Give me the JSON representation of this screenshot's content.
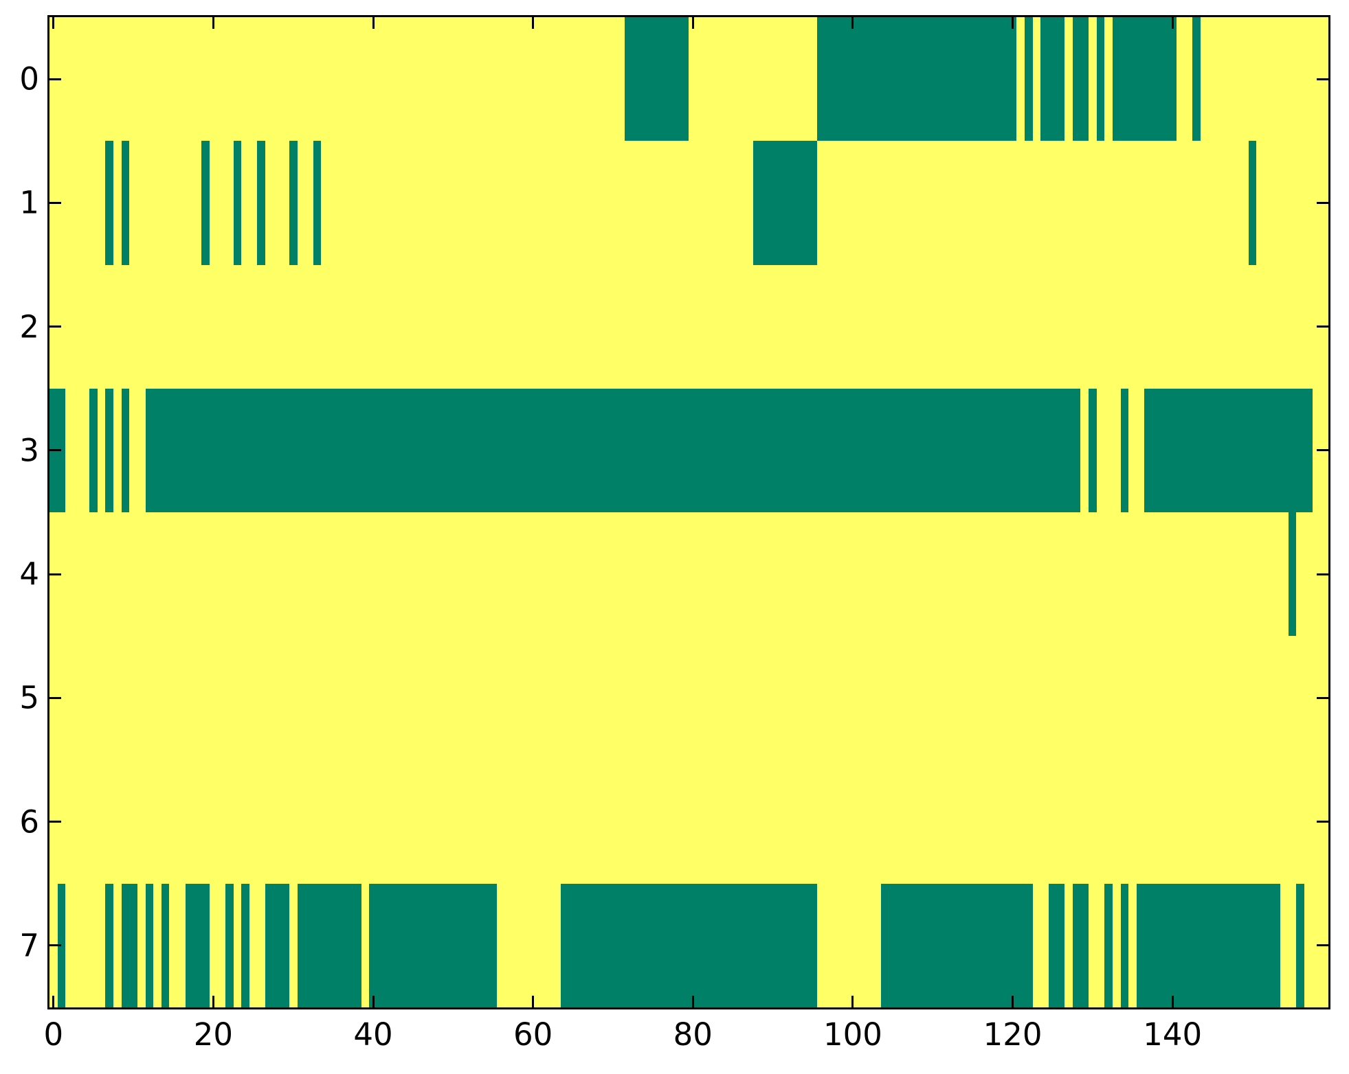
{
  "figure": {
    "background": "#ffffff",
    "spine_color": "#000000",
    "tick_color": "#000000",
    "label_color": "#000000"
  },
  "chart_data": {
    "type": "heatmap",
    "title": "",
    "xlabel": "",
    "ylabel": "",
    "colormap": "summer",
    "colors": {
      "low_value": "#008066",
      "high_value": "#ffff66"
    },
    "n_cols": 160,
    "n_rows": 8,
    "x_range": [
      -0.5,
      159.5
    ],
    "y_range": [
      -0.5,
      7.5
    ],
    "x_ticks": [
      0,
      20,
      40,
      60,
      80,
      100,
      120,
      140
    ],
    "y_ticks": [
      0,
      1,
      2,
      3,
      4,
      5,
      6,
      7
    ],
    "legend": "none",
    "grid": false,
    "value_encoding": "binary matrix: background cells = high value (yellow), listed runs = low value (teal); runs are inclusive [startCol, endCol] ranges, columns 0-159",
    "rows": [
      {
        "label": "0",
        "low_runs": [
          [
            72,
            79
          ],
          [
            96,
            120
          ],
          [
            122,
            122
          ],
          [
            124,
            126
          ],
          [
            128,
            129
          ],
          [
            131,
            131
          ],
          [
            133,
            140
          ],
          [
            143,
            143
          ]
        ]
      },
      {
        "label": "1",
        "low_runs": [
          [
            7,
            7
          ],
          [
            9,
            9
          ],
          [
            19,
            19
          ],
          [
            23,
            23
          ],
          [
            26,
            26
          ],
          [
            30,
            30
          ],
          [
            33,
            33
          ],
          [
            88,
            95
          ],
          [
            150,
            150
          ]
        ]
      },
      {
        "label": "2",
        "low_runs": []
      },
      {
        "label": "3",
        "low_runs": [
          [
            0,
            1
          ],
          [
            5,
            5
          ],
          [
            7,
            7
          ],
          [
            9,
            9
          ],
          [
            12,
            128
          ],
          [
            130,
            130
          ],
          [
            134,
            134
          ],
          [
            137,
            157
          ]
        ]
      },
      {
        "label": "4",
        "low_runs": [
          [
            155,
            155
          ]
        ]
      },
      {
        "label": "5",
        "low_runs": []
      },
      {
        "label": "6",
        "low_runs": []
      },
      {
        "label": "7",
        "low_runs": [
          [
            1,
            1
          ],
          [
            7,
            7
          ],
          [
            9,
            10
          ],
          [
            12,
            12
          ],
          [
            14,
            14
          ],
          [
            17,
            19
          ],
          [
            22,
            22
          ],
          [
            24,
            24
          ],
          [
            27,
            29
          ],
          [
            31,
            38
          ],
          [
            40,
            55
          ],
          [
            64,
            95
          ],
          [
            104,
            122
          ],
          [
            125,
            126
          ],
          [
            128,
            129
          ],
          [
            132,
            132
          ],
          [
            134,
            134
          ],
          [
            136,
            153
          ],
          [
            156,
            156
          ]
        ]
      }
    ]
  }
}
